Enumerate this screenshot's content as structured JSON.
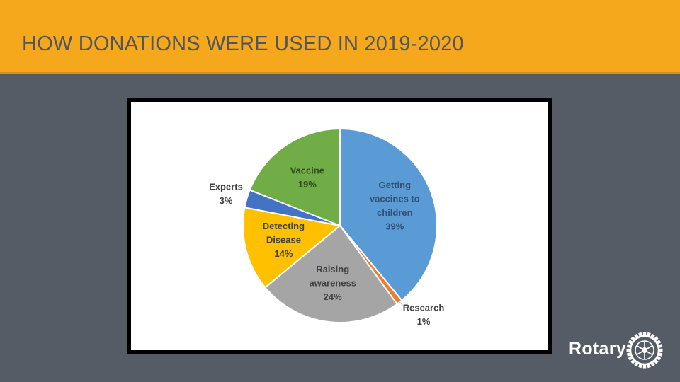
{
  "slide": {
    "title": "HOW DONATIONS WERE USED IN 2019-2020"
  },
  "colors": {
    "header_background": "#f5a81c",
    "slide_background": "#565c66",
    "title_text": "#50555e"
  },
  "chart_data": {
    "type": "pie",
    "title": "",
    "start_angle_deg": 0,
    "direction": "clockwise",
    "slices": [
      {
        "name": "Getting vaccines to children",
        "label_lines": [
          "Getting",
          "vaccines  to",
          "children"
        ],
        "value": 39,
        "value_label": "39%",
        "color": "#5b9bd5",
        "label_color": "#2f4f74"
      },
      {
        "name": "Research",
        "label_lines": [
          "Research"
        ],
        "value": 1,
        "value_label": "1%",
        "color": "#ed7d31",
        "label_color": "#404040",
        "label_outside": true
      },
      {
        "name": "Raising awareness",
        "label_lines": [
          "Raising",
          "awareness"
        ],
        "value": 24,
        "value_label": "24%",
        "color": "#a5a5a5",
        "label_color": "#404040"
      },
      {
        "name": "Detecting Disease",
        "label_lines": [
          "Detecting",
          "Disease"
        ],
        "value": 14,
        "value_label": "14%",
        "color": "#ffc000",
        "label_color": "#404040"
      },
      {
        "name": "Experts",
        "label_lines": [
          "Experts"
        ],
        "value": 3,
        "value_label": "3%",
        "color": "#4472c4",
        "label_color": "#404040",
        "label_outside": true
      },
      {
        "name": "Vaccine",
        "label_lines": [
          "Vaccine"
        ],
        "value": 19,
        "value_label": "19%",
        "color": "#70ad47",
        "label_color": "#2e4d1c"
      }
    ]
  },
  "logo": {
    "wordmark": "Rotary",
    "icon": "rotary-wheel-icon"
  }
}
